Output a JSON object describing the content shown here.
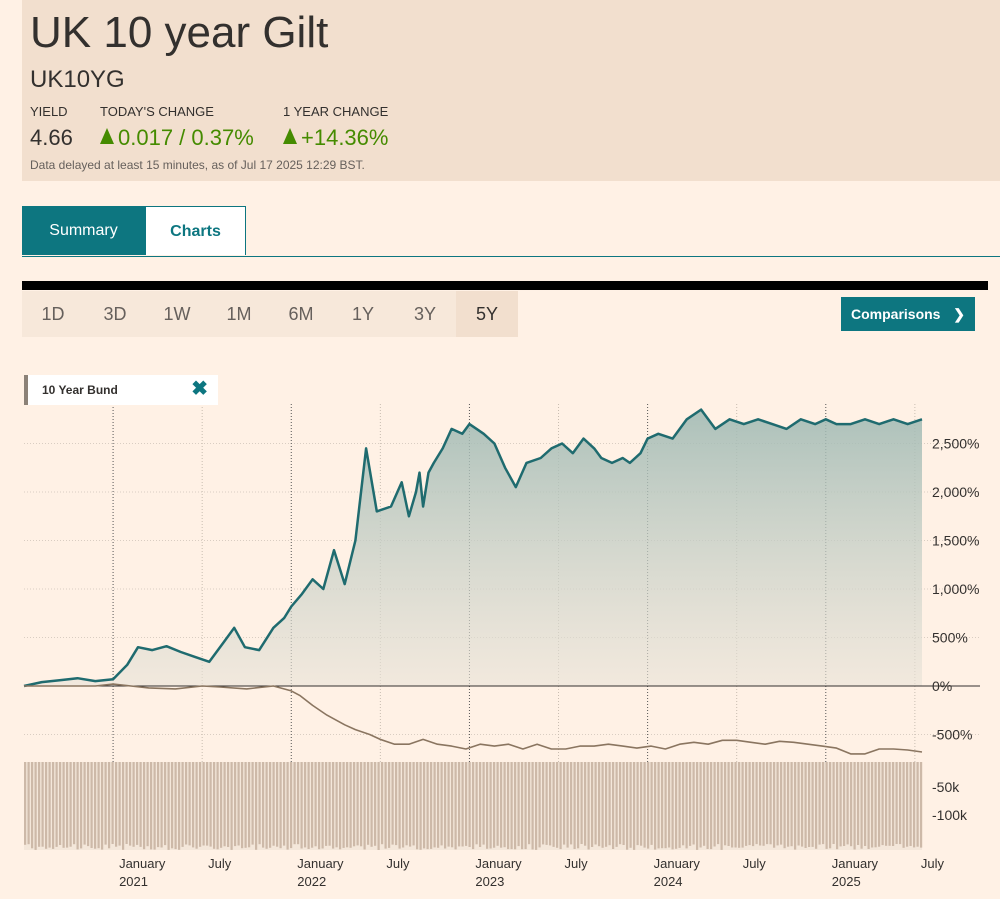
{
  "header": {
    "title": "UK 10 year Gilt",
    "symbol": "UK10YG",
    "yield_label": "YIELD",
    "yield_value": "4.66",
    "today_label": "TODAY'S CHANGE",
    "today_value": "0.017 / 0.37%",
    "year_label": "1 YEAR CHANGE",
    "year_value": "+14.36%",
    "disclaimer": "Data delayed at least 15 minutes, as of Jul 17 2025 12:29 BST."
  },
  "tabs": [
    {
      "label": "Summary",
      "active": true
    },
    {
      "label": "Charts",
      "active": false
    }
  ],
  "periods": [
    "1D",
    "3D",
    "1W",
    "1M",
    "6M",
    "1Y",
    "3Y",
    "5Y"
  ],
  "selected_period": "5Y",
  "comparisons_label": "Comparisons",
  "comparisons_icon": "chevron-right-icon",
  "legend_chip": {
    "label": "10 Year Bund",
    "remove_icon": "close-icon"
  },
  "colors": {
    "primary_line": "#1f6b6f",
    "comparison_line": "#8a7560",
    "volume": "#cdb9a8",
    "accent": "#0d7680",
    "positive": "#458b00"
  },
  "chart_data": {
    "type": "line",
    "y_unit": "%",
    "y_ticks": [
      "2,500%",
      "2,000%",
      "1,500%",
      "1,000%",
      "500%",
      "0%",
      "-500%"
    ],
    "ylim": [
      -650,
      2850
    ],
    "volume_ticks": [
      "-50k",
      "-100k"
    ],
    "x_month_labels": [
      "January",
      "July",
      "January",
      "July",
      "January",
      "July",
      "January",
      "July",
      "January",
      "July"
    ],
    "x_year_labels": [
      "2021",
      "2022",
      "2023",
      "2024",
      "2025"
    ],
    "series": [
      {
        "name": "UK 10 year Gilt",
        "x": [
          2020.5,
          2020.6,
          2020.7,
          2020.8,
          2020.9,
          2021.0,
          2021.08,
          2021.14,
          2021.22,
          2021.3,
          2021.38,
          2021.46,
          2021.54,
          2021.62,
          2021.68,
          2021.74,
          2021.82,
          2021.9,
          2021.96,
          2022.0,
          2022.06,
          2022.12,
          2022.18,
          2022.24,
          2022.3,
          2022.36,
          2022.42,
          2022.48,
          2022.56,
          2022.62,
          2022.66,
          2022.7,
          2022.72,
          2022.74,
          2022.77,
          2022.8,
          2022.85,
          2022.9,
          2022.96,
          2023.0,
          2023.04,
          2023.08,
          2023.14,
          2023.2,
          2023.26,
          2023.32,
          2023.4,
          2023.46,
          2023.52,
          2023.58,
          2023.64,
          2023.7,
          2023.74,
          2023.8,
          2023.86,
          2023.9,
          2023.96,
          2024.0,
          2024.06,
          2024.14,
          2024.22,
          2024.3,
          2024.38,
          2024.46,
          2024.54,
          2024.62,
          2024.7,
          2024.78,
          2024.86,
          2024.94,
          2025.0,
          2025.06,
          2025.14,
          2025.22,
          2025.3,
          2025.38,
          2025.46,
          2025.54
        ],
        "y": [
          0,
          40,
          60,
          80,
          50,
          70,
          220,
          400,
          370,
          410,
          350,
          300,
          250,
          450,
          600,
          400,
          370,
          600,
          700,
          820,
          950,
          1100,
          1000,
          1400,
          1050,
          1500,
          2450,
          1800,
          1850,
          2100,
          1750,
          2000,
          2200,
          1850,
          2200,
          2300,
          2450,
          2650,
          2600,
          2700,
          2650,
          2600,
          2500,
          2250,
          2050,
          2300,
          2350,
          2450,
          2500,
          2400,
          2550,
          2450,
          2350,
          2300,
          2350,
          2300,
          2400,
          2550,
          2600,
          2550,
          2750,
          2850,
          2650,
          2750,
          2700,
          2750,
          2700,
          2650,
          2750,
          2700,
          2750,
          2700,
          2700,
          2750,
          2700,
          2750,
          2700,
          2750
        ]
      },
      {
        "name": "10 Year Bund",
        "x": [
          2020.5,
          2020.7,
          2020.9,
          2021.0,
          2021.1,
          2021.2,
          2021.35,
          2021.5,
          2021.6,
          2021.75,
          2021.9,
          2022.0,
          2022.05,
          2022.12,
          2022.2,
          2022.3,
          2022.36,
          2022.44,
          2022.5,
          2022.58,
          2022.66,
          2022.74,
          2022.82,
          2022.9,
          2022.98,
          2023.06,
          2023.14,
          2023.22,
          2023.3,
          2023.38,
          2023.46,
          2023.54,
          2023.62,
          2023.7,
          2023.78,
          2023.86,
          2023.94,
          2024.02,
          2024.1,
          2024.18,
          2024.26,
          2024.34,
          2024.42,
          2024.5,
          2024.58,
          2024.66,
          2024.74,
          2024.82,
          2024.9,
          2024.98,
          2025.06,
          2025.14,
          2025.22,
          2025.3,
          2025.38,
          2025.46,
          2025.54
        ],
        "y": [
          0,
          0,
          0,
          20,
          0,
          -20,
          -30,
          0,
          -10,
          -30,
          0,
          -50,
          -100,
          -200,
          -300,
          -400,
          -450,
          -500,
          -550,
          -600,
          -600,
          -550,
          -600,
          -620,
          -650,
          -600,
          -620,
          -600,
          -650,
          -600,
          -650,
          -650,
          -620,
          -620,
          -600,
          -620,
          -640,
          -620,
          -650,
          -600,
          -580,
          -600,
          -560,
          -560,
          -580,
          -600,
          -570,
          -580,
          -600,
          -620,
          -640,
          -700,
          -700,
          -650,
          -650,
          -660,
          -680
        ]
      }
    ]
  }
}
